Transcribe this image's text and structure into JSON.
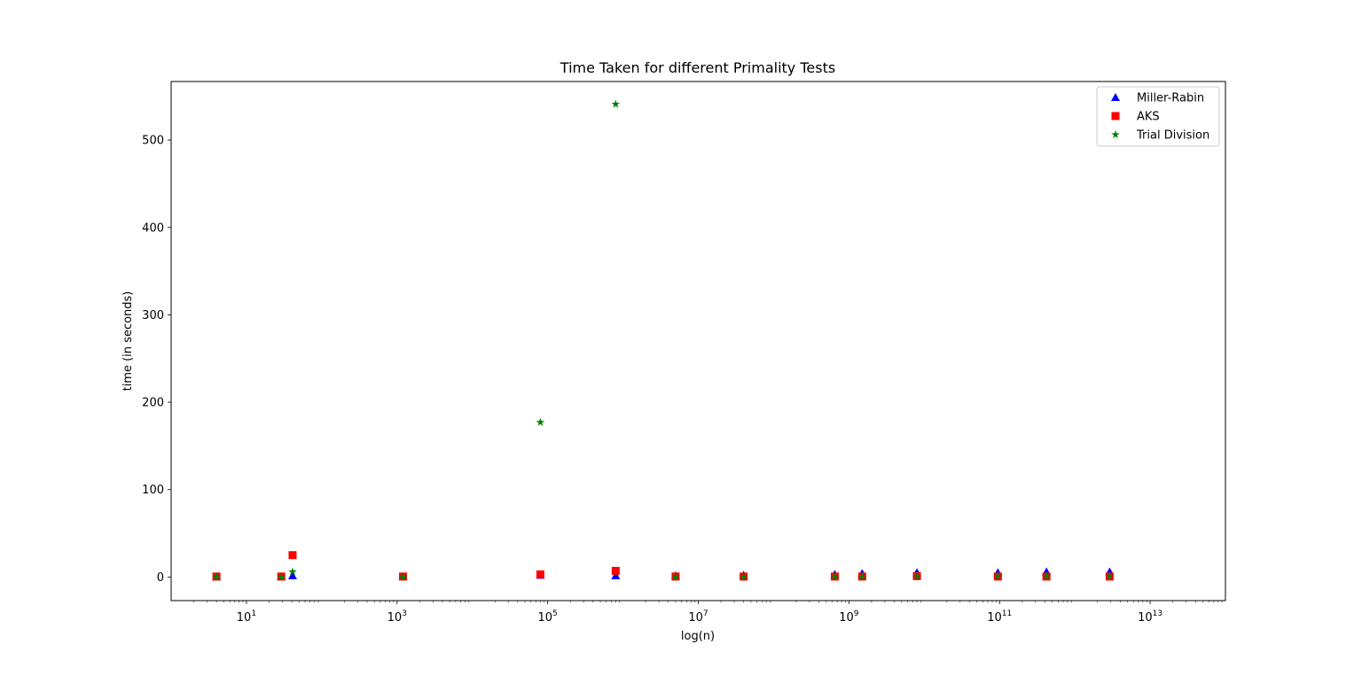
{
  "chart_data": {
    "type": "scatter",
    "title": "Time Taken for different Primality Tests",
    "xlabel": "log(n)",
    "ylabel": "time (in seconds)",
    "xscale": "log",
    "xlim": [
      1,
      100000000000000
    ],
    "ylim": [
      -27,
      567
    ],
    "x_tick_base": "10",
    "x_ticks": [
      {
        "value": 10,
        "exp": "1"
      },
      {
        "value": 1000,
        "exp": "3"
      },
      {
        "value": 100000,
        "exp": "5"
      },
      {
        "value": 10000000,
        "exp": "7"
      },
      {
        "value": 1000000000,
        "exp": "9"
      },
      {
        "value": 100000000000,
        "exp": "11"
      },
      {
        "value": 10000000000000,
        "exp": "13"
      }
    ],
    "y_ticks": [
      {
        "value": 0,
        "label": "0"
      },
      {
        "value": 100,
        "label": "100"
      },
      {
        "value": 200,
        "label": "200"
      },
      {
        "value": 300,
        "label": "300"
      },
      {
        "value": 400,
        "label": "400"
      },
      {
        "value": 500,
        "label": "500"
      }
    ],
    "legend": "top-right",
    "grid": false,
    "series": [
      {
        "name": "Miller-Rabin",
        "marker": "triangle",
        "color": "#0000ff",
        "x": [
          4,
          29,
          41,
          1200,
          80000,
          800000,
          5000000,
          40000000,
          650000000,
          1500000000,
          8000000000,
          95000000000,
          420000000000,
          2900000000000
        ],
        "y": [
          0.3,
          0.4,
          1.5,
          0.4,
          2,
          1.5,
          1.5,
          2,
          3,
          4,
          5,
          5,
          6,
          6
        ]
      },
      {
        "name": "AKS",
        "marker": "square",
        "color": "#ff0000",
        "x": [
          4,
          29,
          41,
          1200,
          80000,
          800000,
          5000000,
          40000000,
          650000000,
          1500000000,
          8000000000,
          95000000000,
          420000000000,
          2900000000000
        ],
        "y": [
          0.5,
          0.5,
          25,
          0.5,
          3,
          7,
          0.5,
          0.5,
          0.5,
          0.5,
          1,
          0.5,
          0.5,
          0.5
        ]
      },
      {
        "name": "Trial Division",
        "marker": "star",
        "color": "#008000",
        "x": [
          4,
          29,
          41,
          1200,
          80000,
          800000,
          5000000,
          40000000,
          650000000,
          1500000000,
          8000000000,
          95000000000,
          420000000000,
          2900000000000
        ],
        "y": [
          0.1,
          0.1,
          6,
          0.1,
          177,
          541,
          0.3,
          0.4,
          0.5,
          0.6,
          1,
          1,
          1,
          1
        ]
      }
    ]
  }
}
